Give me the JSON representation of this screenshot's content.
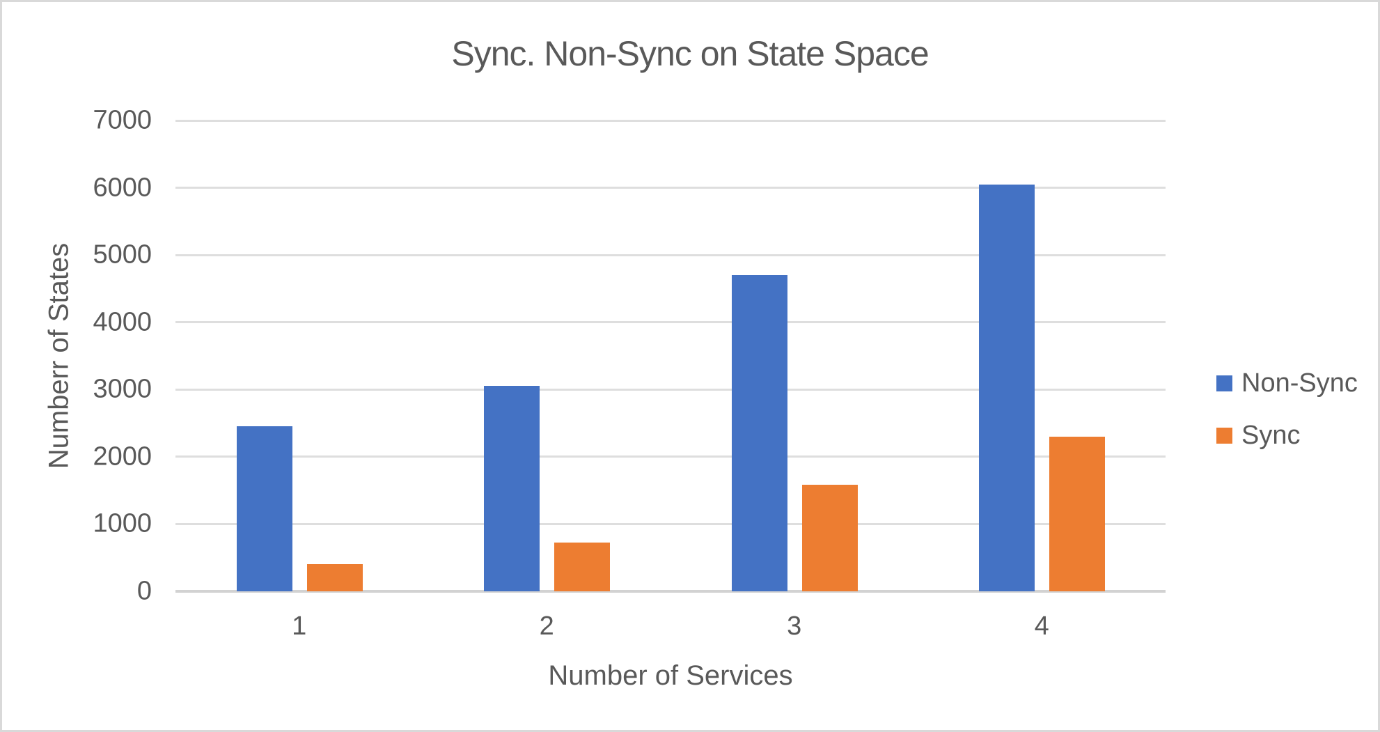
{
  "chart_data": {
    "type": "bar",
    "title": "Sync. Non-Sync on State Space",
    "xlabel": "Number of Services",
    "ylabel": "Numberr of States",
    "categories": [
      "1",
      "2",
      "3",
      "4"
    ],
    "series": [
      {
        "name": "Non-Sync",
        "color": "#4472C4",
        "values": [
          2450,
          3050,
          4700,
          6050
        ]
      },
      {
        "name": "Sync",
        "color": "#ED7D31",
        "values": [
          400,
          730,
          1580,
          2300
        ]
      }
    ],
    "ylim": [
      0,
      7000
    ],
    "yticks": [
      0,
      1000,
      2000,
      3000,
      4000,
      5000,
      6000,
      7000
    ],
    "grid": true,
    "legend_position": "right",
    "colors": {
      "text": "#595959",
      "gridline": "#DEDEDE",
      "axis_line": "#D2D2D2",
      "non_sync": "#4472C4",
      "sync": "#ED7D31"
    }
  }
}
